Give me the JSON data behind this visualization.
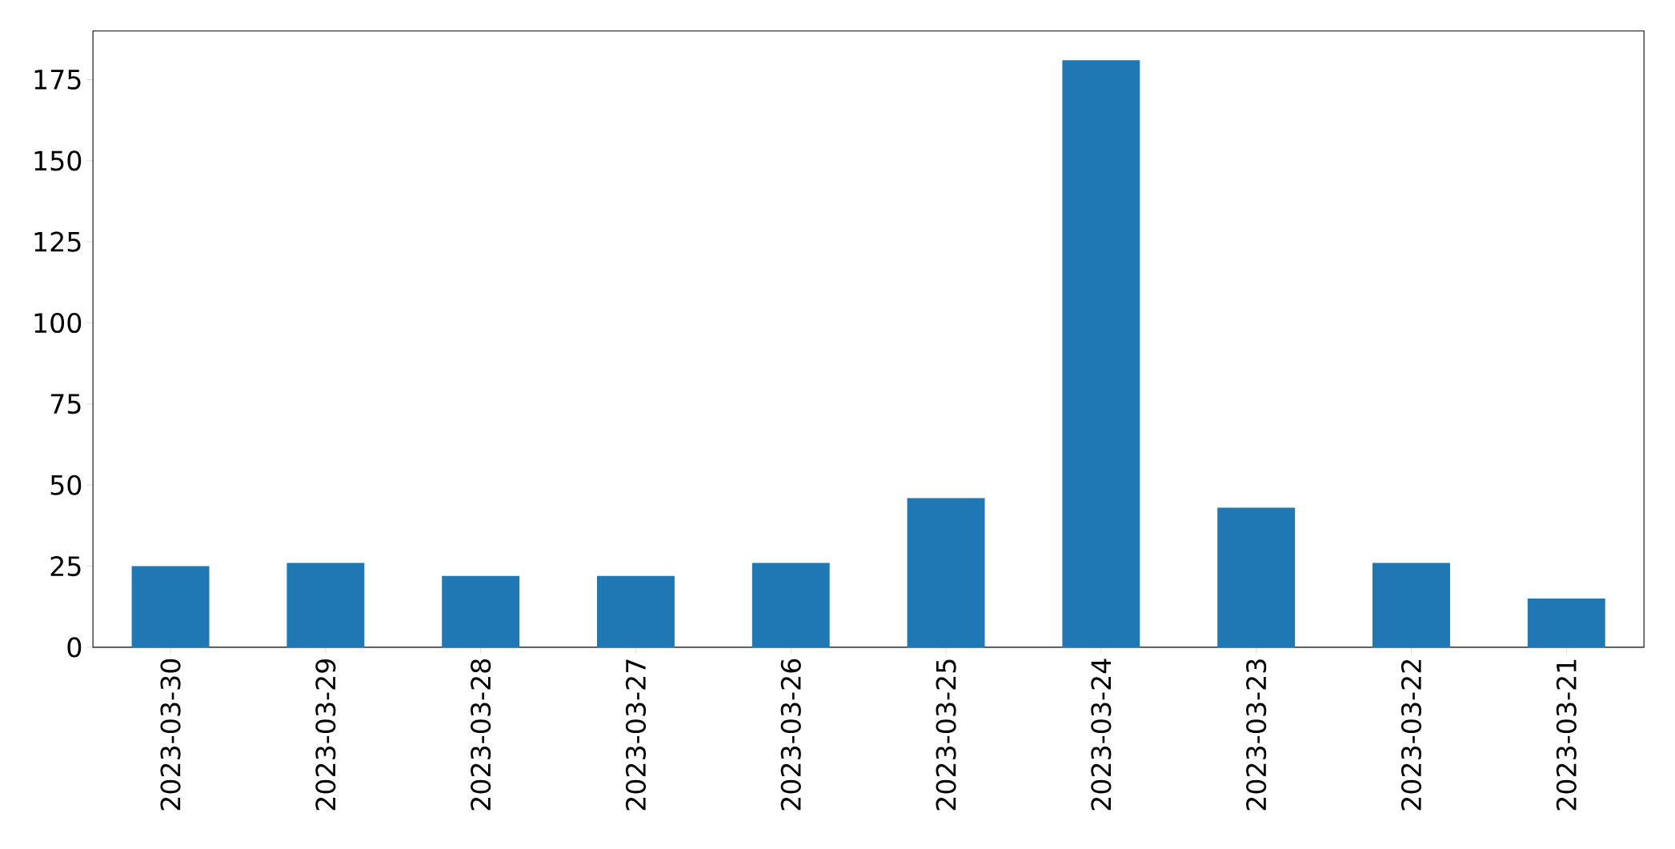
{
  "chart_data": {
    "type": "bar",
    "categories": [
      "2023-03-30",
      "2023-03-29",
      "2023-03-28",
      "2023-03-27",
      "2023-03-26",
      "2023-03-25",
      "2023-03-24",
      "2023-03-23",
      "2023-03-22",
      "2023-03-21"
    ],
    "values": [
      25,
      26,
      22,
      22,
      26,
      46,
      181,
      43,
      26,
      15
    ],
    "color": "#1f77b4",
    "ylim": [
      0,
      190
    ],
    "yticks": [
      0,
      25,
      50,
      75,
      100,
      125,
      150,
      175
    ]
  }
}
